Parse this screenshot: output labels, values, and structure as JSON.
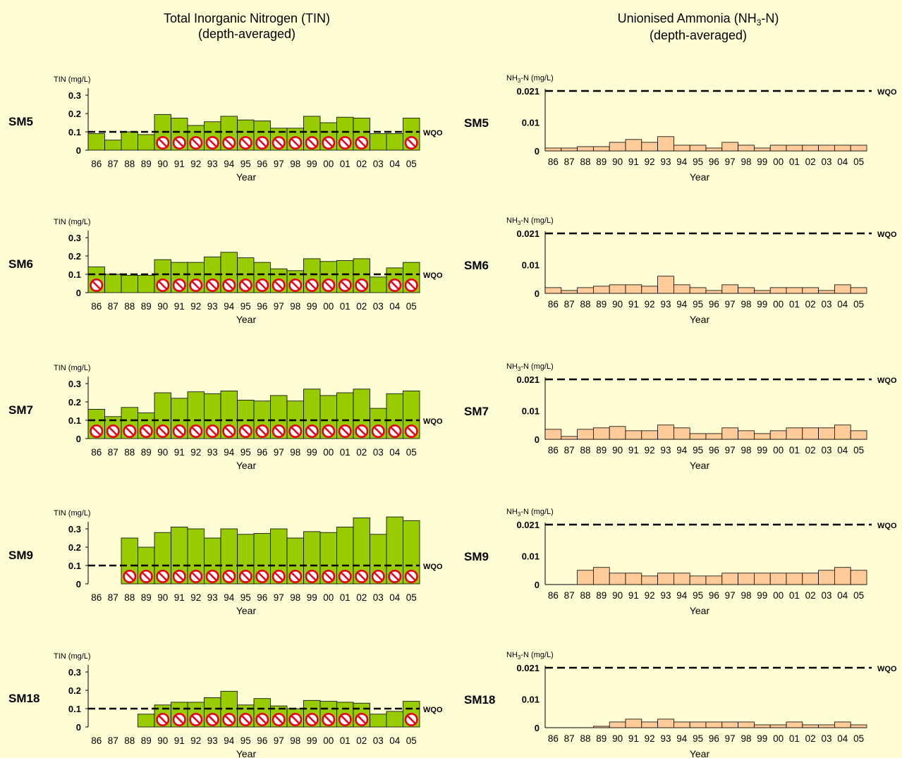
{
  "titles": {
    "tin": [
      "Total Inorganic Nitrogen (TIN)",
      "(depth-averaged)"
    ],
    "nh3": {
      "pre": "Unionised Ammonia (NH",
      "sub": "3",
      "post": "-N)",
      "line2": "(depth-averaged)"
    }
  },
  "chart_data": {
    "type": "bar",
    "years": [
      "86",
      "87",
      "88",
      "89",
      "90",
      "91",
      "92",
      "93",
      "94",
      "95",
      "96",
      "97",
      "98",
      "99",
      "00",
      "01",
      "02",
      "03",
      "04",
      "05"
    ],
    "xlabel": "Year",
    "wqo_label": "WQO",
    "colors": {
      "tin_fill": "#99cc00",
      "nh3_fill": "#ffcc99",
      "prohibit": "#e8001c",
      "background": "#fffdd4"
    },
    "tin": {
      "ylabel": "TIN (mg/L)",
      "ylim": [
        0,
        0.3
      ],
      "yticks": [
        "0",
        "0.1",
        "0.2",
        "0.3"
      ],
      "wqo": 0.1,
      "stations": [
        {
          "name": "SM5",
          "values": [
            0.09,
            0.055,
            0.1,
            0.085,
            0.195,
            0.175,
            0.135,
            0.155,
            0.185,
            0.165,
            0.16,
            0.12,
            0.12,
            0.185,
            0.15,
            0.18,
            0.175,
            0.09,
            0.09,
            0.175
          ],
          "exceed": [
            false,
            false,
            false,
            false,
            true,
            true,
            true,
            true,
            true,
            true,
            true,
            true,
            true,
            true,
            true,
            true,
            true,
            false,
            false,
            true
          ]
        },
        {
          "name": "SM6",
          "values": [
            0.14,
            0.1,
            0.095,
            0.095,
            0.18,
            0.165,
            0.165,
            0.195,
            0.22,
            0.19,
            0.165,
            0.13,
            0.12,
            0.185,
            0.17,
            0.175,
            0.185,
            0.085,
            0.135,
            0.165
          ],
          "exceed": [
            true,
            false,
            false,
            false,
            true,
            true,
            true,
            true,
            true,
            true,
            true,
            true,
            true,
            true,
            true,
            true,
            true,
            false,
            true,
            true
          ]
        },
        {
          "name": "SM7",
          "values": [
            0.16,
            0.12,
            0.17,
            0.14,
            0.25,
            0.22,
            0.255,
            0.245,
            0.26,
            0.21,
            0.205,
            0.235,
            0.205,
            0.27,
            0.235,
            0.25,
            0.27,
            0.165,
            0.245,
            0.26
          ],
          "exceed": [
            true,
            true,
            true,
            true,
            true,
            true,
            true,
            true,
            true,
            true,
            true,
            true,
            true,
            true,
            true,
            true,
            true,
            true,
            true,
            true
          ]
        },
        {
          "name": "SM9",
          "values": [
            null,
            null,
            0.25,
            0.2,
            0.28,
            0.31,
            0.3,
            0.25,
            0.3,
            0.27,
            0.275,
            0.3,
            0.25,
            0.285,
            0.28,
            0.31,
            0.36,
            0.27,
            0.365,
            0.345
          ],
          "exceed": [
            false,
            false,
            true,
            true,
            true,
            true,
            true,
            true,
            true,
            true,
            true,
            true,
            true,
            true,
            true,
            true,
            true,
            true,
            true,
            true
          ]
        },
        {
          "name": "SM18",
          "values": [
            null,
            null,
            null,
            0.07,
            0.12,
            0.135,
            0.135,
            0.16,
            0.195,
            0.12,
            0.155,
            0.115,
            0.1,
            0.145,
            0.14,
            0.135,
            0.13,
            0.07,
            0.085,
            0.14
          ],
          "exceed": [
            false,
            false,
            false,
            false,
            true,
            true,
            true,
            true,
            true,
            true,
            true,
            true,
            true,
            true,
            true,
            true,
            true,
            false,
            false,
            true
          ]
        }
      ]
    },
    "nh3": {
      "ylabel": {
        "pre": "NH",
        "sub": "3",
        "post": "-N (mg/L)"
      },
      "ylim": [
        0,
        0.021
      ],
      "yticks": [
        "0",
        "0.01",
        "0.021"
      ],
      "wqo": 0.021,
      "stations": [
        {
          "name": "SM5",
          "values": [
            0.001,
            0.001,
            0.0015,
            0.0015,
            0.003,
            0.004,
            0.003,
            0.005,
            0.002,
            0.002,
            0.001,
            0.003,
            0.002,
            0.001,
            0.002,
            0.002,
            0.002,
            0.002,
            0.002,
            0.002
          ]
        },
        {
          "name": "SM6",
          "values": [
            0.002,
            0.001,
            0.002,
            0.0025,
            0.003,
            0.003,
            0.0025,
            0.006,
            0.003,
            0.002,
            0.001,
            0.003,
            0.002,
            0.001,
            0.002,
            0.002,
            0.002,
            0.001,
            0.003,
            0.002
          ]
        },
        {
          "name": "SM7",
          "values": [
            0.0035,
            0.001,
            0.0035,
            0.004,
            0.0045,
            0.003,
            0.003,
            0.005,
            0.004,
            0.002,
            0.002,
            0.004,
            0.003,
            0.002,
            0.003,
            0.004,
            0.004,
            0.004,
            0.005,
            0.003
          ]
        },
        {
          "name": "SM9",
          "values": [
            null,
            null,
            0.005,
            0.006,
            0.004,
            0.004,
            0.003,
            0.004,
            0.004,
            0.003,
            0.003,
            0.004,
            0.004,
            0.004,
            0.004,
            0.004,
            0.004,
            0.005,
            0.006,
            0.005
          ]
        },
        {
          "name": "SM18",
          "values": [
            null,
            null,
            null,
            0.0005,
            0.002,
            0.003,
            0.002,
            0.003,
            0.002,
            0.002,
            0.002,
            0.002,
            0.002,
            0.001,
            0.001,
            0.002,
            0.001,
            0.001,
            0.002,
            0.001
          ]
        }
      ]
    }
  }
}
